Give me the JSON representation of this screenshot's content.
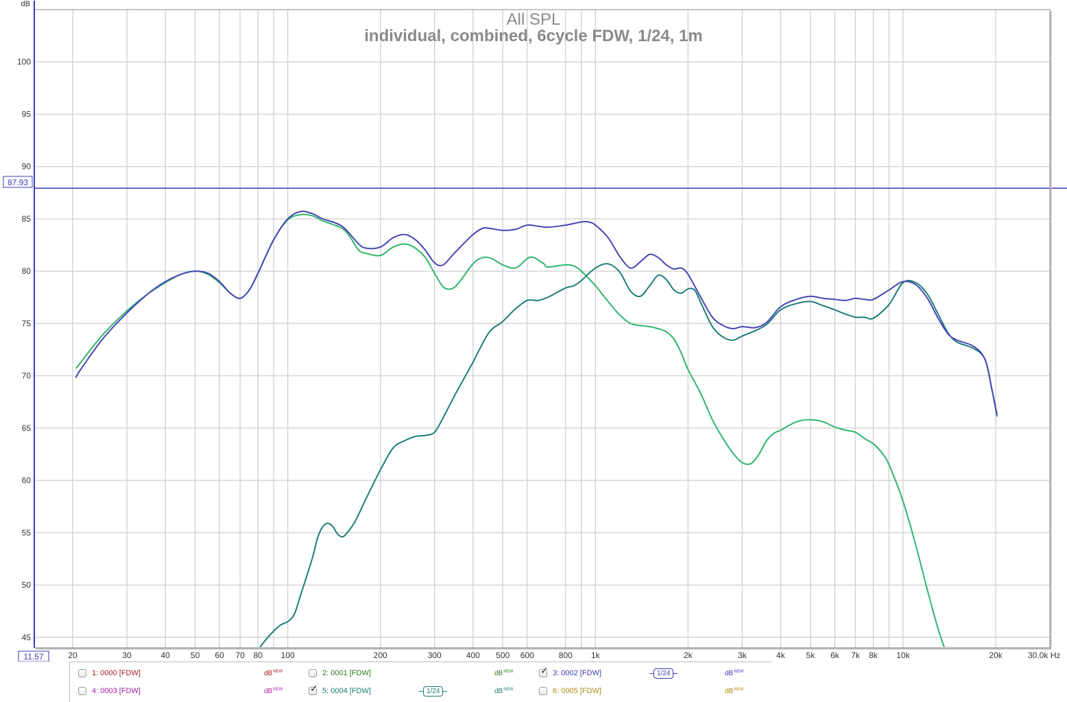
{
  "chart_data": {
    "type": "line",
    "title": "All SPL",
    "subtitle": "individual, combined, 6cycle FDW, 1/24, 1m",
    "ylabel": "dB",
    "xlabel": "Hz",
    "x_scale": "log",
    "xlim": [
      15,
      30000
    ],
    "ylim": [
      44,
      105
    ],
    "x_ticks": [
      {
        "v": 20,
        "label": "20"
      },
      {
        "v": 30,
        "label": "30"
      },
      {
        "v": 40,
        "label": "40"
      },
      {
        "v": 50,
        "label": "50"
      },
      {
        "v": 60,
        "label": "60"
      },
      {
        "v": 70,
        "label": "70"
      },
      {
        "v": 80,
        "label": "80"
      },
      {
        "v": 100,
        "label": "100"
      },
      {
        "v": 200,
        "label": "200"
      },
      {
        "v": 300,
        "label": "300"
      },
      {
        "v": 400,
        "label": "400"
      },
      {
        "v": 500,
        "label": "500"
      },
      {
        "v": 600,
        "label": "600"
      },
      {
        "v": 800,
        "label": "800"
      },
      {
        "v": 1000,
        "label": "1k"
      },
      {
        "v": 2000,
        "label": "2k"
      },
      {
        "v": 3000,
        "label": "3k"
      },
      {
        "v": 4000,
        "label": "4k"
      },
      {
        "v": 5000,
        "label": "5k"
      },
      {
        "v": 6000,
        "label": "6k"
      },
      {
        "v": 7000,
        "label": "7k"
      },
      {
        "v": 8000,
        "label": "8k"
      },
      {
        "v": 10000,
        "label": "10k"
      },
      {
        "v": 20000,
        "label": "20k"
      },
      {
        "v": 30000,
        "label": "30.0k Hz"
      }
    ],
    "x_minor": [
      90,
      900,
      9000
    ],
    "y_ticks": [
      45,
      50,
      55,
      60,
      65,
      70,
      75,
      80,
      85,
      90,
      95,
      100
    ],
    "cursor_y": {
      "value": 87.93,
      "label": "87.93"
    },
    "y_min_label": "11.57",
    "grid": true,
    "series": [
      {
        "name": "3: 0002 [FDW]",
        "color": "#4545b8",
        "points": [
          [
            20.5,
            69.8
          ],
          [
            21,
            70.4
          ],
          [
            25,
            73.5
          ],
          [
            30,
            76.0
          ],
          [
            35,
            77.8
          ],
          [
            40,
            79.0
          ],
          [
            45,
            79.7
          ],
          [
            50,
            80.0
          ],
          [
            55,
            79.8
          ],
          [
            60,
            79.0
          ],
          [
            65,
            77.9
          ],
          [
            70,
            77.4
          ],
          [
            75,
            78.2
          ],
          [
            80,
            79.8
          ],
          [
            90,
            83.0
          ],
          [
            100,
            85.0
          ],
          [
            110,
            85.7
          ],
          [
            120,
            85.5
          ],
          [
            130,
            85.0
          ],
          [
            150,
            84.3
          ],
          [
            170,
            82.6
          ],
          [
            180,
            82.2
          ],
          [
            200,
            82.3
          ],
          [
            220,
            83.2
          ],
          [
            240,
            83.5
          ],
          [
            260,
            83.0
          ],
          [
            280,
            82.0
          ],
          [
            300,
            80.8
          ],
          [
            320,
            80.6
          ],
          [
            350,
            81.8
          ],
          [
            400,
            83.5
          ],
          [
            430,
            84.1
          ],
          [
            450,
            84.1
          ],
          [
            500,
            83.9
          ],
          [
            550,
            84.0
          ],
          [
            600,
            84.4
          ],
          [
            650,
            84.3
          ],
          [
            700,
            84.2
          ],
          [
            800,
            84.4
          ],
          [
            900,
            84.7
          ],
          [
            950,
            84.7
          ],
          [
            1000,
            84.4
          ],
          [
            1100,
            83.2
          ],
          [
            1200,
            81.4
          ],
          [
            1300,
            80.3
          ],
          [
            1400,
            80.9
          ],
          [
            1500,
            81.6
          ],
          [
            1600,
            81.3
          ],
          [
            1700,
            80.6
          ],
          [
            1800,
            80.2
          ],
          [
            1900,
            80.3
          ],
          [
            2000,
            79.7
          ],
          [
            2200,
            77.5
          ],
          [
            2400,
            75.6
          ],
          [
            2600,
            74.8
          ],
          [
            2800,
            74.5
          ],
          [
            3000,
            74.7
          ],
          [
            3300,
            74.6
          ],
          [
            3600,
            75.1
          ],
          [
            4000,
            76.6
          ],
          [
            4500,
            77.3
          ],
          [
            5000,
            77.6
          ],
          [
            5500,
            77.4
          ],
          [
            6000,
            77.3
          ],
          [
            6500,
            77.2
          ],
          [
            7000,
            77.4
          ],
          [
            7500,
            77.3
          ],
          [
            8000,
            77.3
          ],
          [
            9000,
            78.2
          ],
          [
            10000,
            79.0
          ],
          [
            11000,
            78.7
          ],
          [
            12000,
            77.4
          ],
          [
            13000,
            75.5
          ],
          [
            14000,
            74.0
          ],
          [
            15000,
            73.4
          ],
          [
            17000,
            72.8
          ],
          [
            18500,
            71.5
          ],
          [
            19500,
            68.5
          ],
          [
            20200,
            66.3
          ]
        ]
      },
      {
        "name": "5: 0004 [FDW]",
        "color": "#1b7b78",
        "points": [
          [
            80,
            43.8
          ],
          [
            85,
            44.8
          ],
          [
            90,
            45.6
          ],
          [
            95,
            46.2
          ],
          [
            100,
            46.5
          ],
          [
            105,
            47.2
          ],
          [
            110,
            49.0
          ],
          [
            120,
            52.5
          ],
          [
            125,
            54.5
          ],
          [
            130,
            55.6
          ],
          [
            135,
            55.9
          ],
          [
            140,
            55.6
          ],
          [
            145,
            54.9
          ],
          [
            150,
            54.6
          ],
          [
            155,
            54.9
          ],
          [
            165,
            56.0
          ],
          [
            180,
            58.3
          ],
          [
            200,
            61.0
          ],
          [
            220,
            63.1
          ],
          [
            240,
            63.8
          ],
          [
            260,
            64.2
          ],
          [
            280,
            64.3
          ],
          [
            300,
            64.6
          ],
          [
            320,
            66.0
          ],
          [
            350,
            68.2
          ],
          [
            400,
            71.3
          ],
          [
            450,
            74.1
          ],
          [
            500,
            75.2
          ],
          [
            550,
            76.4
          ],
          [
            600,
            77.2
          ],
          [
            650,
            77.2
          ],
          [
            700,
            77.5
          ],
          [
            800,
            78.4
          ],
          [
            850,
            78.6
          ],
          [
            900,
            79.1
          ],
          [
            1000,
            80.3
          ],
          [
            1100,
            80.7
          ],
          [
            1200,
            79.9
          ],
          [
            1300,
            78.1
          ],
          [
            1400,
            77.6
          ],
          [
            1500,
            78.6
          ],
          [
            1600,
            79.6
          ],
          [
            1700,
            79.2
          ],
          [
            1800,
            78.2
          ],
          [
            1900,
            77.9
          ],
          [
            2000,
            78.3
          ],
          [
            2100,
            78.2
          ],
          [
            2200,
            77.0
          ],
          [
            2400,
            74.7
          ],
          [
            2600,
            73.7
          ],
          [
            2800,
            73.4
          ],
          [
            3000,
            73.8
          ],
          [
            3300,
            74.3
          ],
          [
            3600,
            74.9
          ],
          [
            4000,
            76.3
          ],
          [
            4500,
            76.9
          ],
          [
            5000,
            77.1
          ],
          [
            5500,
            76.7
          ],
          [
            6000,
            76.3
          ],
          [
            6500,
            75.9
          ],
          [
            7000,
            75.6
          ],
          [
            7500,
            75.6
          ],
          [
            8000,
            75.5
          ],
          [
            9000,
            76.8
          ],
          [
            10000,
            78.9
          ],
          [
            11000,
            78.9
          ],
          [
            12000,
            77.8
          ],
          [
            13000,
            75.9
          ],
          [
            14000,
            74.1
          ],
          [
            15000,
            73.2
          ],
          [
            17000,
            72.6
          ],
          [
            18500,
            71.5
          ],
          [
            19500,
            68.5
          ],
          [
            20200,
            66.1
          ]
        ]
      },
      {
        "name": "2: 0001 [FDW]",
        "color": "#2db56b",
        "points": [
          [
            20.5,
            70.7
          ],
          [
            25,
            73.9
          ],
          [
            30,
            76.2
          ],
          [
            35,
            77.8
          ],
          [
            40,
            78.9
          ],
          [
            45,
            79.7
          ],
          [
            50,
            80.0
          ],
          [
            55,
            79.7
          ],
          [
            60,
            78.9
          ],
          [
            65,
            77.9
          ],
          [
            70,
            77.4
          ],
          [
            75,
            78.2
          ],
          [
            80,
            79.8
          ],
          [
            90,
            83.0
          ],
          [
            100,
            84.9
          ],
          [
            110,
            85.4
          ],
          [
            120,
            85.3
          ],
          [
            130,
            84.8
          ],
          [
            150,
            84.1
          ],
          [
            160,
            83.2
          ],
          [
            170,
            82.0
          ],
          [
            180,
            81.7
          ],
          [
            200,
            81.5
          ],
          [
            220,
            82.3
          ],
          [
            240,
            82.6
          ],
          [
            260,
            82.2
          ],
          [
            280,
            81.3
          ],
          [
            300,
            79.8
          ],
          [
            320,
            78.5
          ],
          [
            340,
            78.3
          ],
          [
            360,
            78.9
          ],
          [
            400,
            80.7
          ],
          [
            430,
            81.3
          ],
          [
            460,
            81.2
          ],
          [
            500,
            80.6
          ],
          [
            550,
            80.3
          ],
          [
            600,
            81.2
          ],
          [
            630,
            81.3
          ],
          [
            680,
            80.7
          ],
          [
            700,
            80.4
          ],
          [
            800,
            80.6
          ],
          [
            850,
            80.5
          ],
          [
            900,
            80.0
          ],
          [
            1000,
            78.6
          ],
          [
            1100,
            77.1
          ],
          [
            1200,
            75.8
          ],
          [
            1300,
            75.0
          ],
          [
            1400,
            74.8
          ],
          [
            1500,
            74.7
          ],
          [
            1600,
            74.5
          ],
          [
            1700,
            74.2
          ],
          [
            1800,
            73.5
          ],
          [
            1900,
            72.2
          ],
          [
            2000,
            70.6
          ],
          [
            2200,
            68.3
          ],
          [
            2400,
            65.8
          ],
          [
            2600,
            64.0
          ],
          [
            2800,
            62.6
          ],
          [
            3000,
            61.7
          ],
          [
            3200,
            61.6
          ],
          [
            3400,
            62.5
          ],
          [
            3600,
            63.8
          ],
          [
            3800,
            64.5
          ],
          [
            4000,
            64.8
          ],
          [
            4500,
            65.6
          ],
          [
            5000,
            65.8
          ],
          [
            5500,
            65.6
          ],
          [
            6000,
            65.1
          ],
          [
            6500,
            64.8
          ],
          [
            7000,
            64.6
          ],
          [
            7500,
            64.0
          ],
          [
            8000,
            63.5
          ],
          [
            8500,
            62.7
          ],
          [
            9000,
            61.5
          ],
          [
            10000,
            58.0
          ],
          [
            11000,
            53.8
          ],
          [
            12000,
            49.5
          ],
          [
            13000,
            45.8
          ],
          [
            13700,
            43.8
          ]
        ]
      }
    ]
  },
  "legend": [
    {
      "label": "1: 0000 [FDW]",
      "color": "#a82020",
      "checked": false,
      "db": "dB",
      "new": "NEW",
      "smoothing": ""
    },
    {
      "label": "2: 0001 [FDW]",
      "color": "#2a7a1a",
      "checked": false,
      "db": "dB",
      "new": "NEW",
      "smoothing": ""
    },
    {
      "label": "3: 0002 [FDW]",
      "color": "#3b3bb0",
      "checked": true,
      "db": "dB",
      "new": "NEW",
      "smoothing": "1/24"
    },
    {
      "label": "4: 0003 [FDW]",
      "color": "#a020a0",
      "checked": false,
      "db": "dB",
      "new": "NEW",
      "smoothing": ""
    },
    {
      "label": "5: 0004 [FDW]",
      "color": "#1b7b78",
      "checked": true,
      "db": "dB",
      "new": "NEW",
      "smoothing": "1/24"
    },
    {
      "label": "6: 0005 [FDW]",
      "color": "#b08a10",
      "checked": false,
      "db": "dB",
      "new": "NEW",
      "smoothing": ""
    }
  ]
}
